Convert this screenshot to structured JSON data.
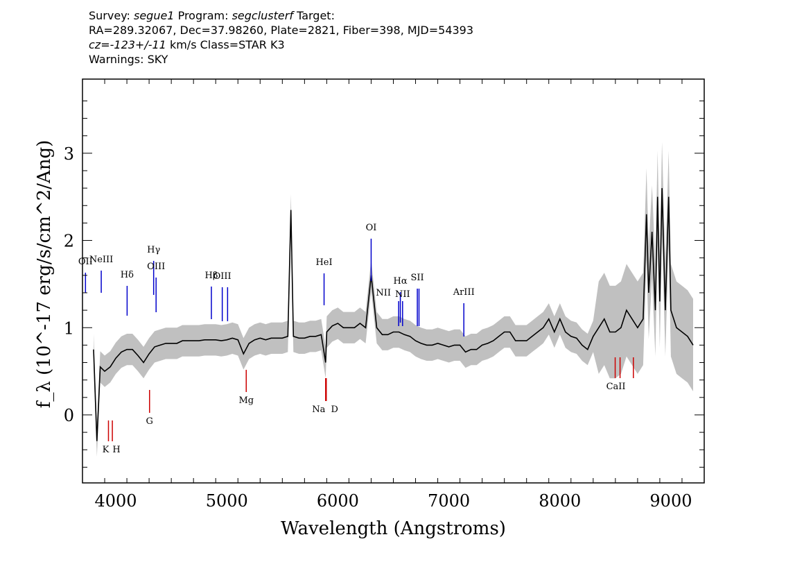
{
  "header": {
    "survey_label": "Survey:",
    "survey": "segue1",
    "program_label": "Program:",
    "program": "segclusterf",
    "target_label": "Target:",
    "line2": "RA=289.32067, Dec=37.98260, Plate=2821, Fiber=398, MJD=54393",
    "cz_label": "cz=",
    "cz_value": "-123+/-11",
    "cz_rest": " km/s Class=STAR K3",
    "warnings": "Warnings: SKY"
  },
  "colors": {
    "spectrum": "#000000",
    "error_band": "#c0c0c0",
    "emission": "#0000cc",
    "absorption": "#cc0000"
  },
  "chart_data": {
    "type": "line",
    "xlabel": "Wavelength (Angstroms)",
    "ylabel": "f_λ (10^-17 erg/s/cm^2/Ang)",
    "xlim": [
      3700,
      9300
    ],
    "ylim": [
      -0.78,
      3.85
    ],
    "grid": false,
    "x_ticks": [
      4000,
      5000,
      6000,
      7000,
      8000,
      9000
    ],
    "y_ticks": [
      0,
      1,
      2,
      3
    ],
    "series": [
      {
        "x": [
          3800,
          3830,
          3860,
          3900,
          3950,
          4000,
          4050,
          4100,
          4150,
          4200,
          4250,
          4300,
          4350,
          4400,
          4450,
          4500,
          4550,
          4600,
          4650,
          4700,
          4750,
          4800,
          4850,
          4900,
          4950,
          5000,
          5050,
          5100,
          5150,
          5200,
          5250,
          5300,
          5350,
          5400,
          5450,
          5500,
          5550,
          5577,
          5600,
          5650,
          5700,
          5750,
          5800,
          5850,
          5890,
          5900,
          5950,
          6000,
          6050,
          6100,
          6150,
          6200,
          6250,
          6300,
          6350,
          6400,
          6450,
          6500,
          6550,
          6600,
          6650,
          6700,
          6750,
          6800,
          6850,
          6900,
          6950,
          7000,
          7050,
          7100,
          7150,
          7200,
          7250,
          7300,
          7350,
          7400,
          7450,
          7500,
          7550,
          7600,
          7650,
          7700,
          7750,
          7800,
          7850,
          7900,
          7950,
          8000,
          8050,
          8100,
          8150,
          8200,
          8250,
          8300,
          8350,
          8400,
          8450,
          8500,
          8550,
          8600,
          8650,
          8700,
          8750,
          8780,
          8800,
          8830,
          8860,
          8880,
          8900,
          8920,
          8950,
          8980,
          9000,
          9050,
          9100,
          9150,
          9200
        ],
        "y": [
          0.75,
          -0.3,
          0.55,
          0.5,
          0.55,
          0.65,
          0.72,
          0.75,
          0.75,
          0.68,
          0.6,
          0.7,
          0.78,
          0.8,
          0.82,
          0.82,
          0.82,
          0.85,
          0.85,
          0.85,
          0.85,
          0.86,
          0.86,
          0.86,
          0.85,
          0.86,
          0.88,
          0.86,
          0.7,
          0.82,
          0.86,
          0.88,
          0.86,
          0.88,
          0.88,
          0.88,
          0.9,
          2.35,
          0.9,
          0.88,
          0.88,
          0.9,
          0.9,
          0.92,
          0.6,
          0.95,
          1.02,
          1.05,
          1.0,
          1.0,
          1.0,
          1.05,
          1.0,
          1.6,
          1.0,
          0.92,
          0.92,
          0.95,
          0.95,
          0.92,
          0.9,
          0.85,
          0.82,
          0.8,
          0.8,
          0.82,
          0.8,
          0.78,
          0.8,
          0.8,
          0.72,
          0.75,
          0.75,
          0.8,
          0.82,
          0.85,
          0.9,
          0.95,
          0.95,
          0.85,
          0.85,
          0.85,
          0.9,
          0.95,
          1.0,
          1.1,
          0.95,
          1.1,
          0.95,
          0.9,
          0.88,
          0.8,
          0.75,
          0.9,
          1.0,
          1.1,
          0.95,
          0.95,
          1.0,
          1.2,
          1.1,
          1.0,
          1.1,
          2.3,
          1.4,
          2.1,
          1.2,
          2.5,
          1.3,
          2.6,
          1.2,
          2.5,
          1.2,
          1.0,
          0.95,
          0.9,
          0.8
        ]
      }
    ],
    "emission_lines": [
      {
        "label": "OII",
        "x": 3727
      },
      {
        "label": "NeIII",
        "x": 3869
      },
      {
        "label": "Hδ",
        "x": 4102
      },
      {
        "label": "Hγ",
        "x": 4341
      },
      {
        "label": "OIII",
        "x": 4363
      },
      {
        "label": "Hβ",
        "x": 4861
      },
      {
        "label": "OIII",
        "x": 4959
      },
      {
        "label": "OIII",
        "x": 5007
      },
      {
        "label": "HeI",
        "x": 5876
      },
      {
        "label": "OI",
        "x": 6300
      },
      {
        "label": "NII",
        "x": 6548
      },
      {
        "label": "Hα",
        "x": 6563
      },
      {
        "label": "NII",
        "x": 6583
      },
      {
        "label": "SII",
        "x": 6716
      },
      {
        "label": "SII",
        "x": 6731
      },
      {
        "label": "ArIII",
        "x": 7135
      }
    ],
    "absorption_lines": [
      {
        "label": "K",
        "x": 3934
      },
      {
        "label": "H",
        "x": 3969
      },
      {
        "label": "G",
        "x": 4304
      },
      {
        "label": "Mg",
        "x": 5175
      },
      {
        "label": "Na",
        "x": 5890
      },
      {
        "label": "D",
        "x": 5896
      },
      {
        "label": "CaII",
        "x": 8498
      },
      {
        "label": "CaII",
        "x": 8542
      },
      {
        "label": "CaII",
        "x": 8662
      }
    ]
  }
}
